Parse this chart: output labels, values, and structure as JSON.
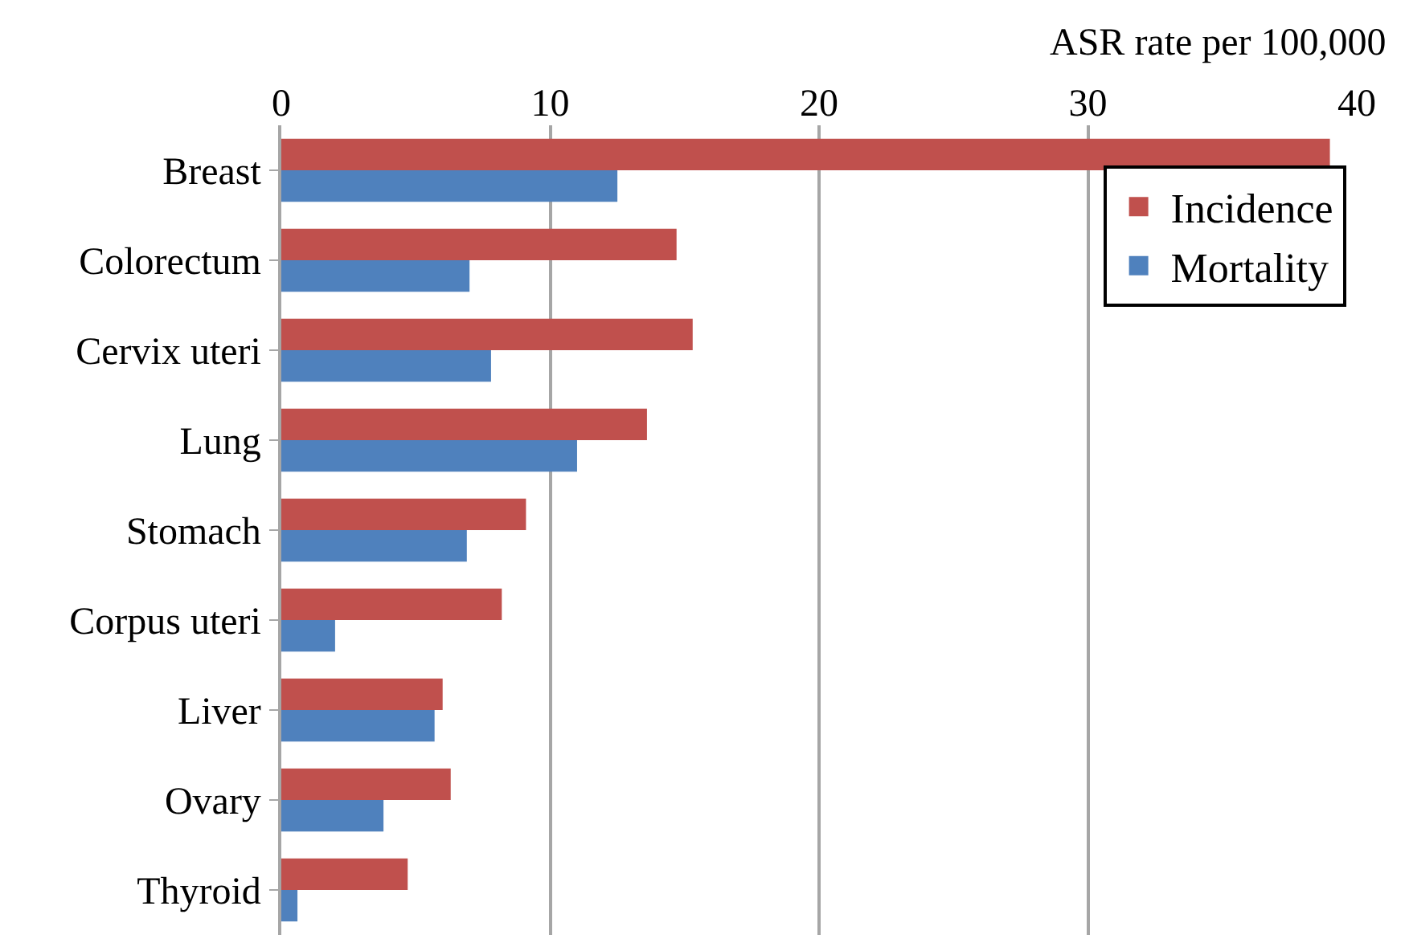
{
  "chart_data": {
    "type": "bar",
    "orientation": "horizontal",
    "xlabel": "ASR rate per 100,000",
    "categories": [
      "Breast",
      "Colorectum",
      "Cervix uteri",
      "Lung",
      "Stomach",
      "Corpus uteri",
      "Liver",
      "Ovary",
      "Thyroid"
    ],
    "series": [
      {
        "name": "Incidence",
        "color": "#c0504d",
        "values": [
          39.0,
          14.7,
          15.3,
          13.6,
          9.1,
          8.2,
          6.0,
          6.3,
          4.7
        ]
      },
      {
        "name": "Mortality",
        "color": "#4f81bd",
        "values": [
          12.5,
          7.0,
          7.8,
          11.0,
          6.9,
          2.0,
          5.7,
          3.8,
          0.6
        ]
      }
    ],
    "xlim": [
      0,
      40
    ],
    "xticks": [
      0,
      10,
      20,
      30,
      40
    ],
    "grid": "x",
    "legend": "top right"
  }
}
